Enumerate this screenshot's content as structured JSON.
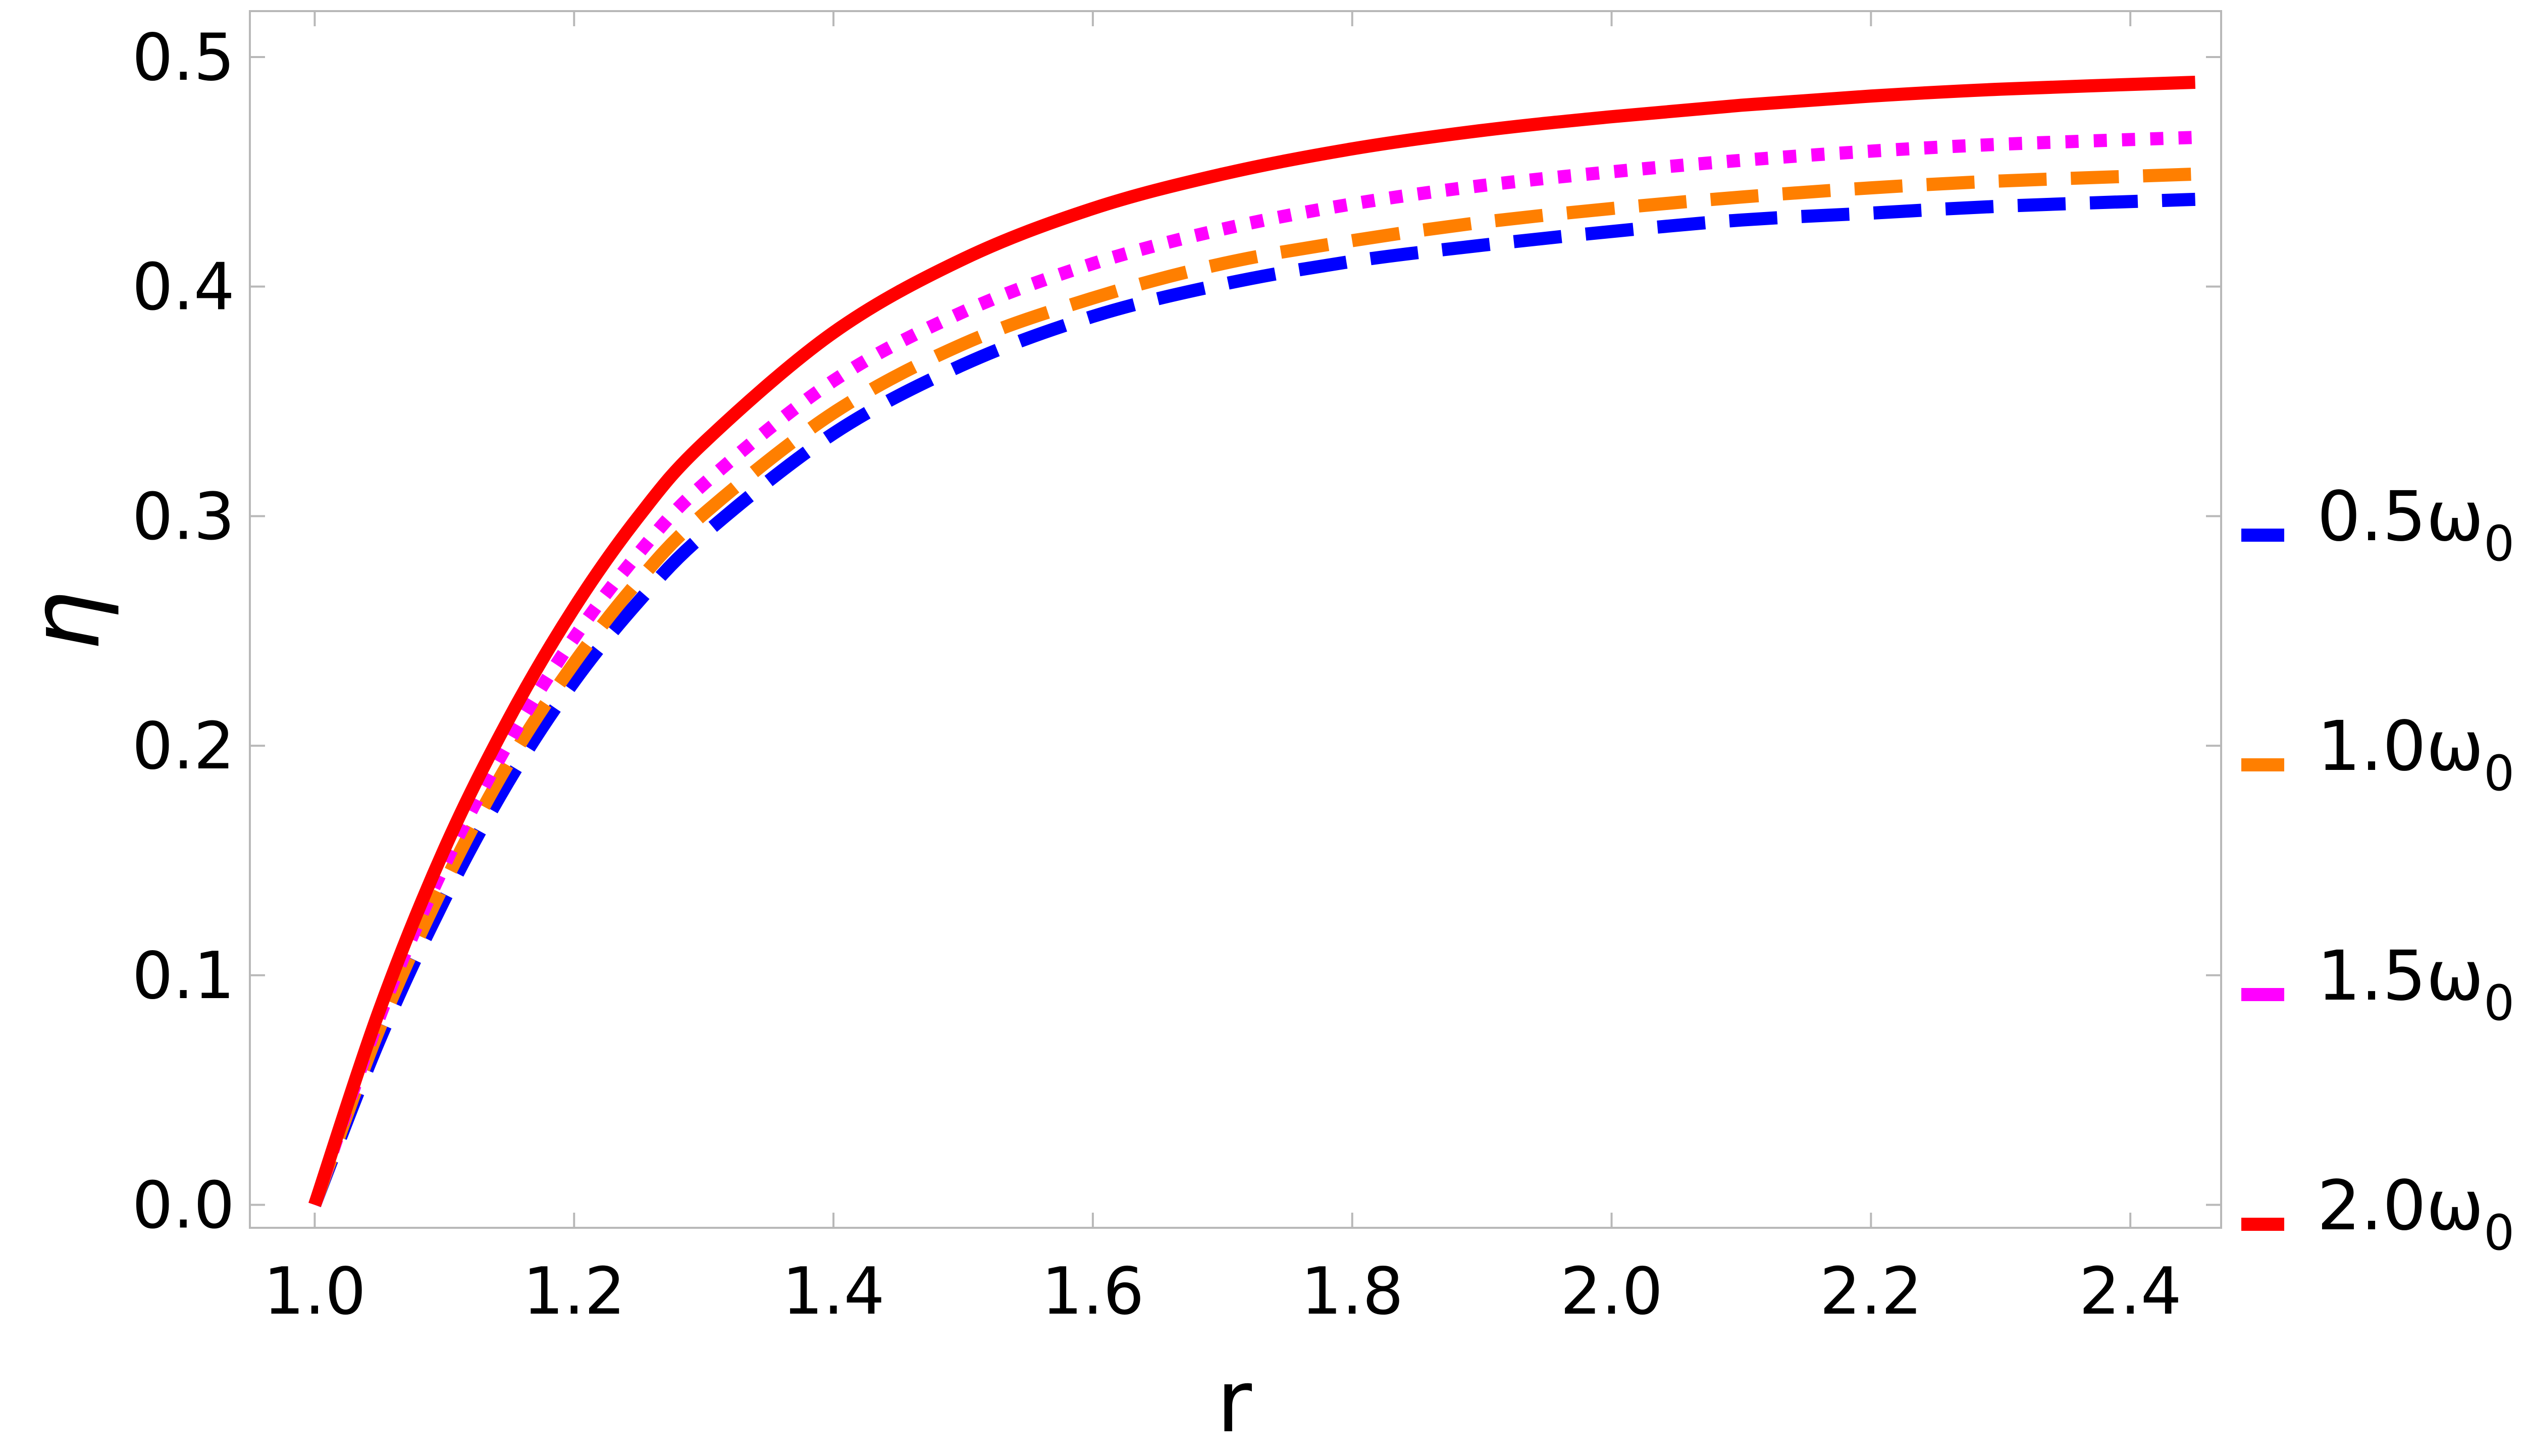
{
  "chart_data": {
    "type": "line",
    "xlabel": "r",
    "ylabel": "η",
    "xlim": [
      0.95,
      2.47
    ],
    "ylim": [
      -0.01,
      0.52
    ],
    "xticks": [
      "1.0",
      "1.2",
      "1.4",
      "1.6",
      "1.8",
      "2.0",
      "2.2",
      "2.4"
    ],
    "xtick_values": [
      1.0,
      1.2,
      1.4,
      1.6,
      1.8,
      2.0,
      2.2,
      2.4
    ],
    "yticks": [
      "0.0",
      "0.1",
      "0.2",
      "0.3",
      "0.4",
      "0.5"
    ],
    "ytick_values": [
      0.0,
      0.1,
      0.2,
      0.3,
      0.4,
      0.5
    ],
    "grid": false,
    "legend_placement": "right",
    "x": [
      1.0,
      1.05,
      1.1,
      1.15,
      1.2,
      1.25,
      1.3,
      1.4,
      1.5,
      1.6,
      1.7,
      1.8,
      1.9,
      2.0,
      2.1,
      2.2,
      2.3,
      2.45
    ],
    "series": [
      {
        "name_main": "0.5ω",
        "name_sub": "0",
        "color": "#0000ff",
        "style": "dashed",
        "values": [
          0.0,
          0.072,
          0.133,
          0.185,
          0.228,
          0.263,
          0.292,
          0.336,
          0.366,
          0.387,
          0.401,
          0.411,
          0.418,
          0.424,
          0.429,
          0.432,
          0.435,
          0.438
        ]
      },
      {
        "name_main": "1.0ω",
        "name_sub": "0",
        "color": "#ff7f00",
        "style": "dashed",
        "values": [
          0.0,
          0.077,
          0.14,
          0.193,
          0.236,
          0.272,
          0.301,
          0.345,
          0.375,
          0.395,
          0.41,
          0.42,
          0.428,
          0.434,
          0.439,
          0.443,
          0.446,
          0.449
        ]
      },
      {
        "name_main": "1.5ω",
        "name_sub": "0",
        "color": "#ff00ff",
        "style": "dotted",
        "values": [
          0.0,
          0.082,
          0.148,
          0.202,
          0.247,
          0.284,
          0.314,
          0.359,
          0.389,
          0.41,
          0.425,
          0.436,
          0.444,
          0.45,
          0.455,
          0.459,
          0.462,
          0.465
        ]
      },
      {
        "name_main": "2.0ω",
        "name_sub": "0",
        "color": "#ff0000",
        "style": "solid",
        "values": [
          0.0,
          0.085,
          0.155,
          0.212,
          0.26,
          0.3,
          0.332,
          0.38,
          0.412,
          0.434,
          0.449,
          0.46,
          0.468,
          0.474,
          0.479,
          0.483,
          0.486,
          0.489
        ]
      }
    ]
  }
}
